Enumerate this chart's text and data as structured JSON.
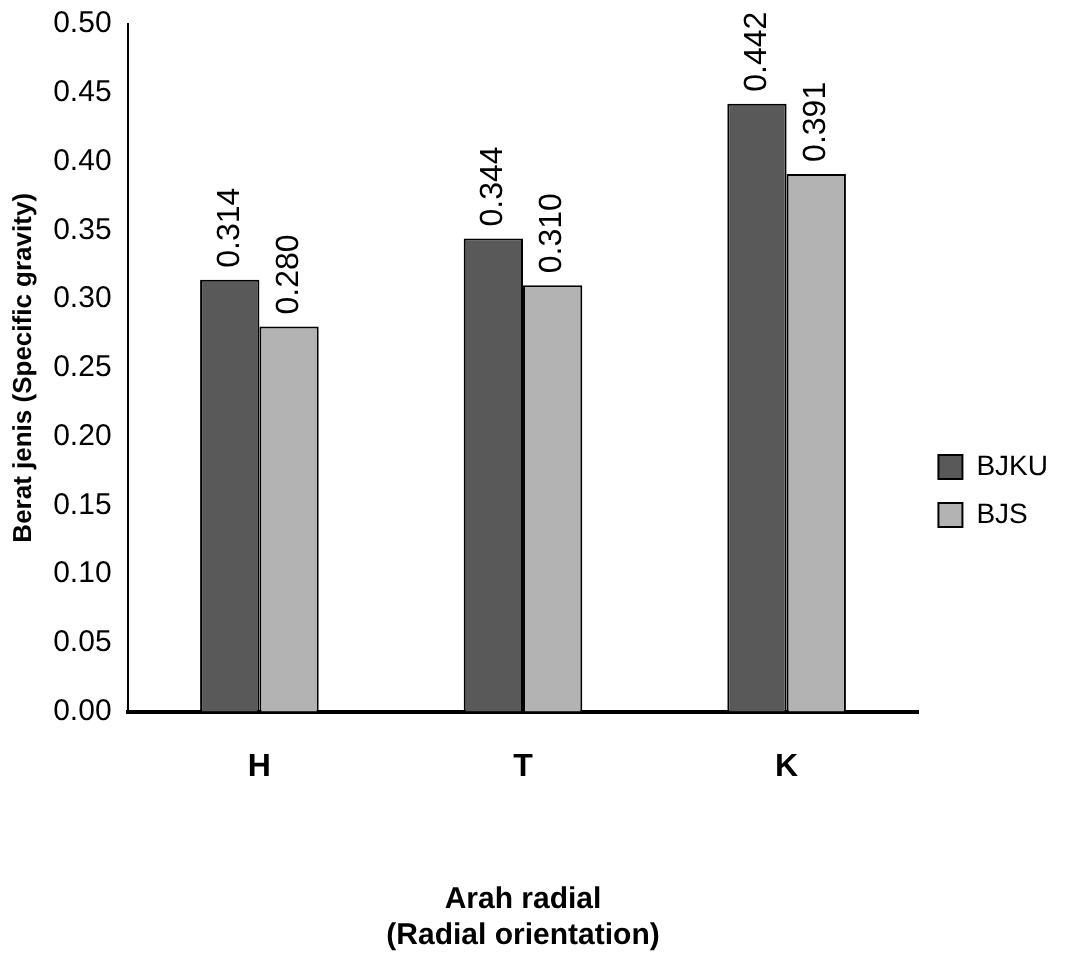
{
  "chart_data": {
    "type": "bar",
    "categories": [
      "H",
      "T",
      "K"
    ],
    "series": [
      {
        "name": "BJKU",
        "color": "#595959",
        "values": [
          0.314,
          0.344,
          0.442
        ],
        "value_labels": [
          "0.314",
          "0.344",
          "0.442"
        ]
      },
      {
        "name": "BJS",
        "color": "#b3b3b3",
        "values": [
          0.28,
          0.31,
          0.391
        ],
        "value_labels": [
          "0.280",
          "0.310",
          "0.391"
        ]
      }
    ],
    "ylim": [
      0,
      0.5
    ],
    "yticks": [
      {
        "value": 0,
        "label": "0.00"
      },
      {
        "value": 0.05,
        "label": "0.05"
      },
      {
        "value": 0.1,
        "label": "0.10"
      },
      {
        "value": 0.15,
        "label": "0.15"
      },
      {
        "value": 0.2,
        "label": "0.20"
      },
      {
        "value": 0.25,
        "label": "0.25"
      },
      {
        "value": 0.3,
        "label": "0.30"
      },
      {
        "value": 0.35,
        "label": "0.35"
      },
      {
        "value": 0.4,
        "label": "0.40"
      },
      {
        "value": 0.45,
        "label": "0.45"
      },
      {
        "value": 0.5,
        "label": "0.50"
      }
    ],
    "xlabel": "Arah radial\n(Radial orientation)",
    "ylabel": "Berat jenis (Specific gravity)",
    "grid": false,
    "legend": "right"
  }
}
